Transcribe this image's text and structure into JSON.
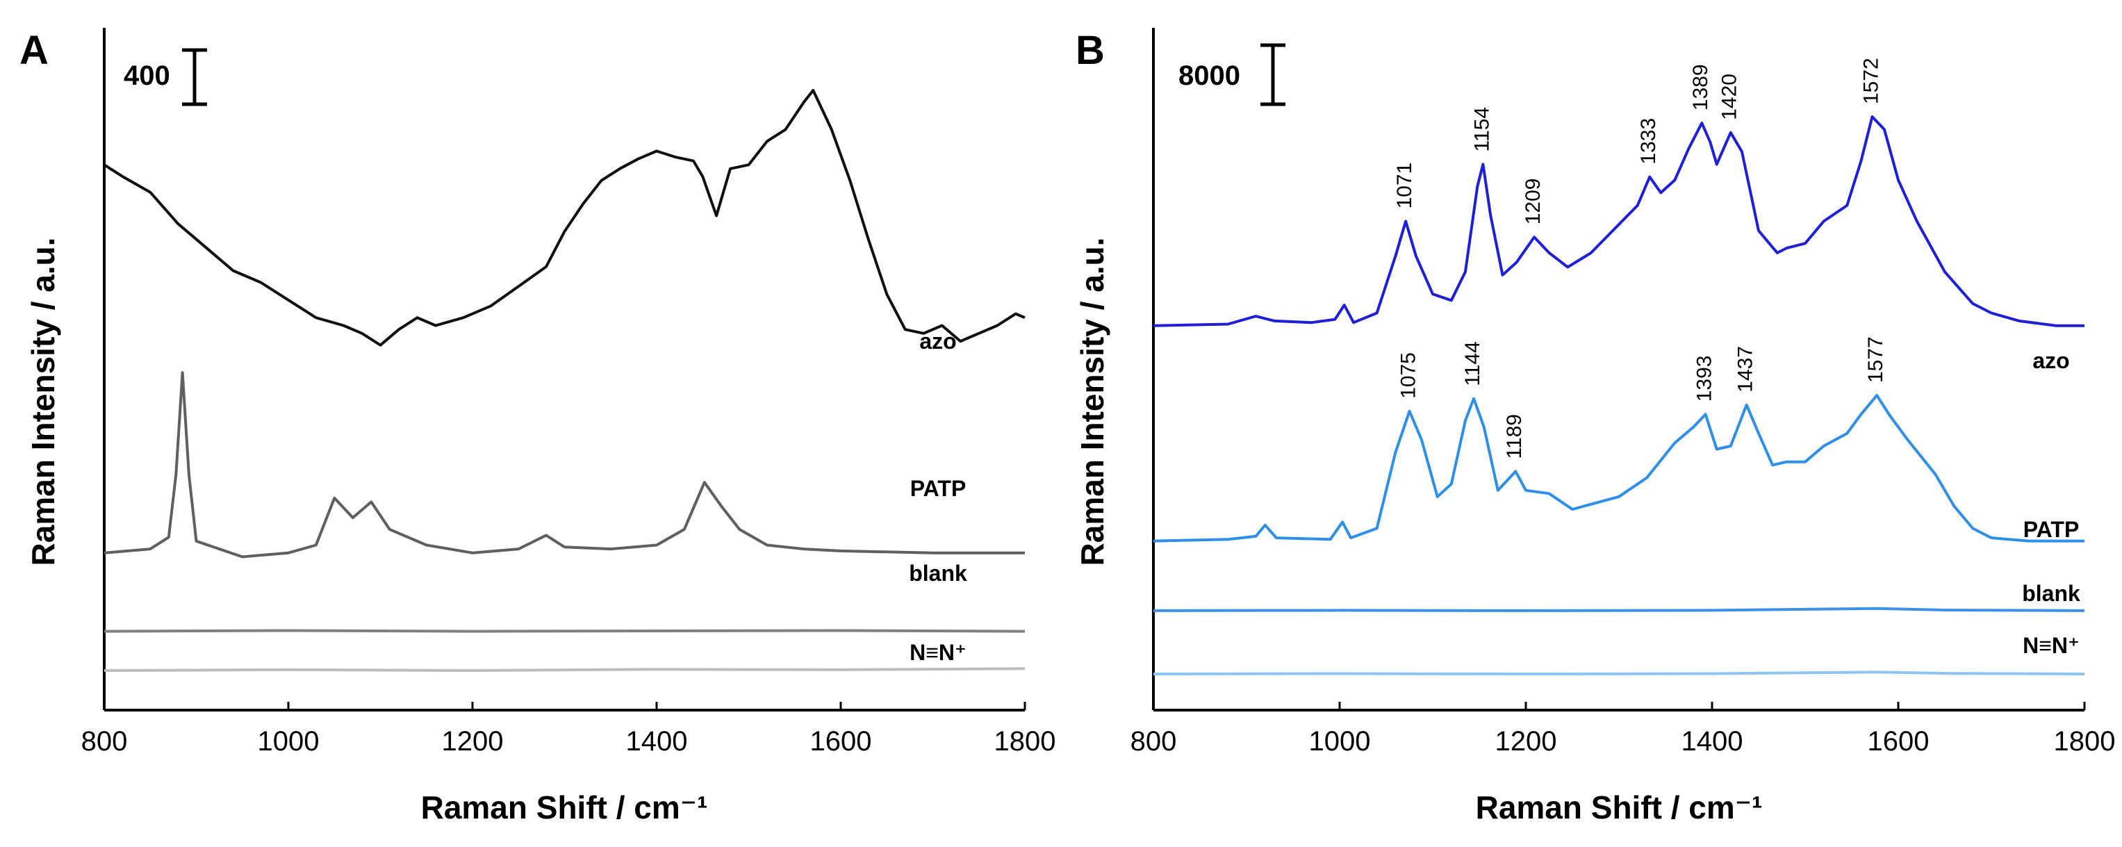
{
  "chart_data": [
    {
      "panel": "A",
      "type": "line",
      "xlabel": "Raman Shift / cm⁻¹",
      "ylabel": "Raman Intensity / a.u.",
      "xlim": [
        800,
        1800
      ],
      "xticks": [
        800,
        1000,
        1200,
        1400,
        1600,
        1800
      ],
      "scale_bar": "400",
      "grid": false,
      "series": [
        {
          "name": "azo",
          "color": "#111111",
          "points": [
            [
              800,
              1290
            ],
            [
              820,
              1260
            ],
            [
              850,
              1220
            ],
            [
              880,
              1140
            ],
            [
              910,
              1080
            ],
            [
              940,
              1020
            ],
            [
              970,
              990
            ],
            [
              1000,
              945
            ],
            [
              1030,
              900
            ],
            [
              1060,
              880
            ],
            [
              1080,
              860
            ],
            [
              1100,
              830
            ],
            [
              1120,
              870
            ],
            [
              1140,
              900
            ],
            [
              1160,
              880
            ],
            [
              1190,
              900
            ],
            [
              1220,
              930
            ],
            [
              1250,
              980
            ],
            [
              1280,
              1030
            ],
            [
              1300,
              1120
            ],
            [
              1320,
              1190
            ],
            [
              1340,
              1250
            ],
            [
              1360,
              1280
            ],
            [
              1380,
              1305
            ],
            [
              1400,
              1325
            ],
            [
              1420,
              1310
            ],
            [
              1440,
              1300
            ],
            [
              1450,
              1260
            ],
            [
              1465,
              1160
            ],
            [
              1480,
              1280
            ],
            [
              1500,
              1290
            ],
            [
              1520,
              1350
            ],
            [
              1540,
              1380
            ],
            [
              1560,
              1450
            ],
            [
              1570,
              1480
            ],
            [
              1590,
              1380
            ],
            [
              1610,
              1250
            ],
            [
              1630,
              1100
            ],
            [
              1650,
              960
            ],
            [
              1670,
              870
            ],
            [
              1690,
              860
            ],
            [
              1710,
              880
            ],
            [
              1730,
              840
            ],
            [
              1750,
              860
            ],
            [
              1770,
              880
            ],
            [
              1790,
              910
            ],
            [
              1800,
              900
            ]
          ]
        },
        {
          "name": "PATP",
          "color": "#5f5f5f",
          "points": [
            [
              800,
              300
            ],
            [
              850,
              310
            ],
            [
              870,
              340
            ],
            [
              878,
              500
            ],
            [
              885,
              760
            ],
            [
              892,
              500
            ],
            [
              900,
              330
            ],
            [
              950,
              290
            ],
            [
              1000,
              300
            ],
            [
              1030,
              320
            ],
            [
              1050,
              440
            ],
            [
              1070,
              390
            ],
            [
              1090,
              430
            ],
            [
              1110,
              360
            ],
            [
              1150,
              320
            ],
            [
              1200,
              300
            ],
            [
              1250,
              310
            ],
            [
              1280,
              345
            ],
            [
              1300,
              315
            ],
            [
              1350,
              310
            ],
            [
              1400,
              320
            ],
            [
              1430,
              360
            ],
            [
              1452,
              480
            ],
            [
              1470,
              420
            ],
            [
              1490,
              360
            ],
            [
              1520,
              320
            ],
            [
              1560,
              310
            ],
            [
              1600,
              305
            ],
            [
              1700,
              300
            ],
            [
              1800,
              300
            ]
          ]
        },
        {
          "name": "blank",
          "color": "#808080",
          "points": [
            [
              800,
              100
            ],
            [
              1000,
              102
            ],
            [
              1200,
              100
            ],
            [
              1400,
              101
            ],
            [
              1600,
              102
            ],
            [
              1800,
              100
            ]
          ]
        },
        {
          "name": "N≡N⁺",
          "color": "#bcbcbc",
          "points": [
            [
              800,
              0
            ],
            [
              1000,
              2
            ],
            [
              1200,
              0
            ],
            [
              1400,
              3
            ],
            [
              1600,
              2
            ],
            [
              1800,
              5
            ]
          ]
        }
      ]
    },
    {
      "panel": "B",
      "type": "line",
      "xlabel": "Raman Shift / cm⁻¹",
      "ylabel": "Raman Intensity / a.u.",
      "xlim": [
        800,
        1800
      ],
      "xticks": [
        800,
        1000,
        1200,
        1400,
        1600,
        1800
      ],
      "scale_bar": "8000",
      "grid": false,
      "series": [
        {
          "name": "azo",
          "color": "#1f1fd6",
          "peak_labels": [
            "1071",
            "1154",
            "1209",
            "1333",
            "1389",
            "1420",
            "1572"
          ],
          "points": [
            [
              800,
              1100
            ],
            [
              880,
              1105
            ],
            [
              910,
              1130
            ],
            [
              930,
              1115
            ],
            [
              970,
              1110
            ],
            [
              995,
              1120
            ],
            [
              1005,
              1165
            ],
            [
              1015,
              1110
            ],
            [
              1040,
              1140
            ],
            [
              1060,
              1320
            ],
            [
              1071,
              1430
            ],
            [
              1082,
              1320
            ],
            [
              1100,
              1200
            ],
            [
              1120,
              1180
            ],
            [
              1135,
              1270
            ],
            [
              1148,
              1540
            ],
            [
              1154,
              1610
            ],
            [
              1162,
              1450
            ],
            [
              1175,
              1260
            ],
            [
              1190,
              1300
            ],
            [
              1209,
              1380
            ],
            [
              1225,
              1330
            ],
            [
              1245,
              1285
            ],
            [
              1270,
              1330
            ],
            [
              1300,
              1420
            ],
            [
              1320,
              1480
            ],
            [
              1333,
              1570
            ],
            [
              1345,
              1520
            ],
            [
              1360,
              1560
            ],
            [
              1375,
              1660
            ],
            [
              1389,
              1740
            ],
            [
              1398,
              1680
            ],
            [
              1405,
              1610
            ],
            [
              1420,
              1710
            ],
            [
              1432,
              1650
            ],
            [
              1450,
              1400
            ],
            [
              1470,
              1330
            ],
            [
              1480,
              1345
            ],
            [
              1500,
              1360
            ],
            [
              1520,
              1430
            ],
            [
              1545,
              1480
            ],
            [
              1560,
              1620
            ],
            [
              1572,
              1760
            ],
            [
              1585,
              1720
            ],
            [
              1600,
              1560
            ],
            [
              1620,
              1430
            ],
            [
              1650,
              1270
            ],
            [
              1680,
              1170
            ],
            [
              1700,
              1140
            ],
            [
              1730,
              1115
            ],
            [
              1770,
              1100
            ],
            [
              1800,
              1100
            ]
          ]
        },
        {
          "name": "PATP",
          "color": "#2f8fe8",
          "peak_labels": [
            "1075",
            "1144",
            "1189",
            "1393",
            "1437",
            "1577"
          ],
          "points": [
            [
              800,
              420
            ],
            [
              880,
              425
            ],
            [
              910,
              435
            ],
            [
              920,
              470
            ],
            [
              932,
              430
            ],
            [
              990,
              425
            ],
            [
              1003,
              480
            ],
            [
              1012,
              430
            ],
            [
              1040,
              460
            ],
            [
              1060,
              700
            ],
            [
              1075,
              830
            ],
            [
              1088,
              740
            ],
            [
              1105,
              560
            ],
            [
              1120,
              600
            ],
            [
              1135,
              800
            ],
            [
              1144,
              870
            ],
            [
              1155,
              780
            ],
            [
              1170,
              580
            ],
            [
              1189,
              640
            ],
            [
              1200,
              580
            ],
            [
              1225,
              570
            ],
            [
              1250,
              520
            ],
            [
              1300,
              560
            ],
            [
              1330,
              620
            ],
            [
              1360,
              730
            ],
            [
              1380,
              780
            ],
            [
              1393,
              820
            ],
            [
              1405,
              710
            ],
            [
              1420,
              720
            ],
            [
              1437,
              850
            ],
            [
              1450,
              760
            ],
            [
              1465,
              660
            ],
            [
              1480,
              670
            ],
            [
              1500,
              670
            ],
            [
              1520,
              720
            ],
            [
              1545,
              760
            ],
            [
              1560,
              820
            ],
            [
              1577,
              880
            ],
            [
              1590,
              820
            ],
            [
              1610,
              740
            ],
            [
              1640,
              630
            ],
            [
              1660,
              530
            ],
            [
              1680,
              460
            ],
            [
              1700,
              430
            ],
            [
              1740,
              420
            ],
            [
              1800,
              420
            ]
          ]
        },
        {
          "name": "blank",
          "color": "#3d90e8",
          "points": [
            [
              800,
              200
            ],
            [
              1000,
              201
            ],
            [
              1200,
              200
            ],
            [
              1400,
              201
            ],
            [
              1577,
              207
            ],
            [
              1650,
              202
            ],
            [
              1800,
              200
            ]
          ]
        },
        {
          "name": "N≡N⁺",
          "color": "#8fc4f2",
          "points": [
            [
              800,
              0
            ],
            [
              1000,
              1
            ],
            [
              1200,
              0
            ],
            [
              1400,
              1
            ],
            [
              1577,
              6
            ],
            [
              1650,
              2
            ],
            [
              1800,
              0
            ]
          ]
        }
      ]
    }
  ]
}
